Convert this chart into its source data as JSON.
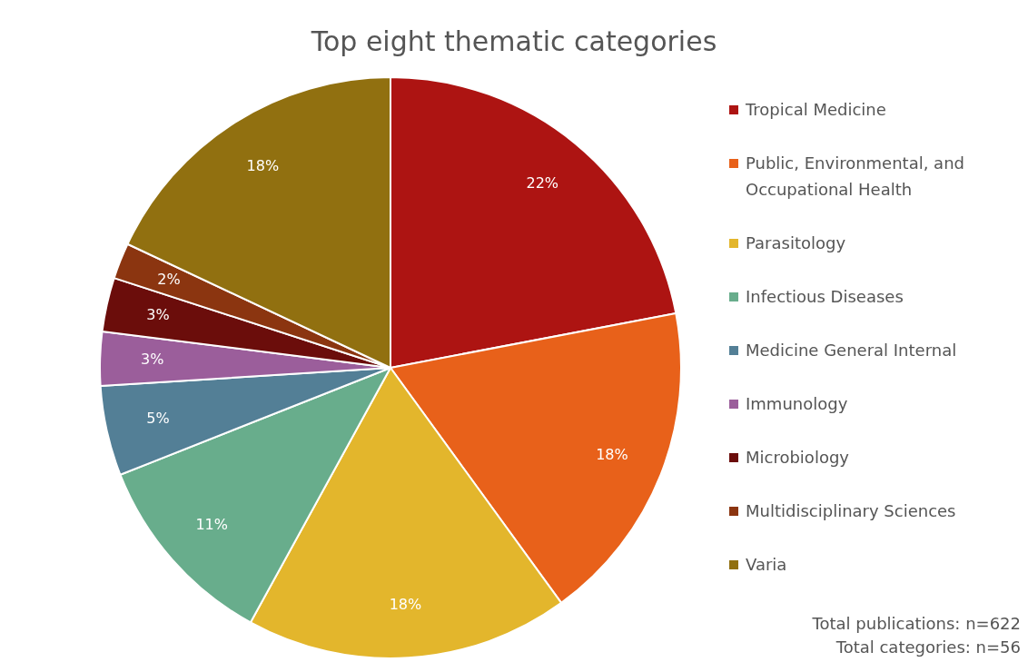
{
  "chart_data": {
    "type": "pie",
    "title": "Top eight thematic categories",
    "categories": [
      "Tropical Medicine",
      "Public, Environmental, and Occupational Health",
      "Parasitology",
      "Infectious Diseases",
      "Medicine General Internal",
      "Immunology",
      "Microbiology",
      "Multidisciplinary Sciences",
      "Varia"
    ],
    "values": [
      22,
      18,
      18,
      11,
      5,
      3,
      3,
      2,
      18
    ],
    "colors": [
      "#ad1412",
      "#e8611a",
      "#e3b62c",
      "#68ad8c",
      "#537f96",
      "#9b5e9b",
      "#6b0d0b",
      "#8b3510",
      "#917010"
    ],
    "value_labels": [
      "22%",
      "18%",
      "18%",
      "11%",
      "5%",
      "3%",
      "3%",
      "2%",
      "18%"
    ],
    "legend": "right",
    "annotations": [
      "Total publications: n=622",
      "Total categories: n=56"
    ]
  }
}
